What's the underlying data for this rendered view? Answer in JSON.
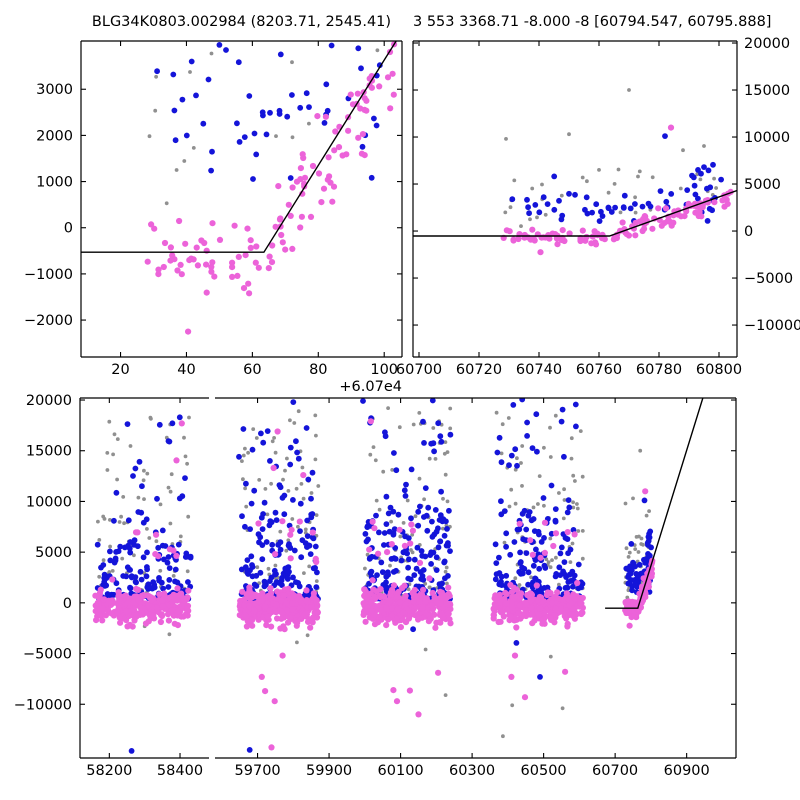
{
  "colors": {
    "pink": "#ec63d9",
    "blue": "#1414d9",
    "gray": "#909090",
    "model_line": "#000000",
    "frame": "#000000",
    "background": "#ffffff"
  },
  "chart_data": {
    "type": "scatter",
    "description": "Three-panel photometric light curve: top-left zoom of event season (flux vs time, x offset +6.07e4), top-right same season full flux range, bottom full multi-season light curve with broken x-axis; piecewise-linear model fit overplotted.",
    "titles": {
      "left": "BLG34K0803.002984 (8203.71, 2545.41)",
      "right": "3 553 3368.71 -8.000 -8 [60794.547, 60795.888]"
    },
    "model_line": {
      "baseline": -530,
      "t_break": 60763.5,
      "slope": 114
    },
    "panels": [
      {
        "id": "top-left",
        "xlim": [
          60708,
          60805.4
        ],
        "ylim": [
          -2800,
          4045
        ],
        "xticks": {
          "values": [
            60720,
            60740,
            60760,
            60780,
            60800
          ],
          "labels": [
            "20",
            "40",
            "60",
            "80",
            "100"
          ]
        },
        "offset_text": "+6.07e4",
        "yticks": {
          "values": [
            -2000,
            -1000,
            0,
            1000,
            2000,
            3000
          ],
          "labels": [
            "−2000",
            "−1000",
            "0",
            "1000",
            "2000",
            "3000"
          ],
          "label_side": "left"
        },
        "datasets": [
          "event"
        ],
        "line_x": [
          60708,
          60805.4
        ]
      },
      {
        "id": "top-right",
        "xlim": [
          60698,
          60806
        ],
        "ylim": [
          -13400,
          20215
        ],
        "xticks": {
          "values": [
            60700,
            60720,
            60740,
            60760,
            60780,
            60800
          ],
          "labels": [
            "60700",
            "60720",
            "60740",
            "60760",
            "60780",
            "60800"
          ]
        },
        "yticks": {
          "values": [
            -10000,
            -5000,
            0,
            5000,
            10000,
            15000,
            20000
          ],
          "labels": [
            "−10000",
            "−5000",
            "0",
            "5000",
            "10000",
            "15000",
            "20000"
          ],
          "label_side": "right"
        },
        "datasets": [
          "event"
        ],
        "line_x": [
          60698,
          60806
        ]
      },
      {
        "id": "bottom-left",
        "xlim": [
          58117,
          58482
        ],
        "ylim": [
          -15300,
          20200
        ],
        "xticks": {
          "values": [
            58200,
            58400
          ],
          "labels": [
            "58200",
            "58400"
          ]
        },
        "yticks": {
          "values": [
            -10000,
            -5000,
            0,
            5000,
            10000,
            15000,
            20000
          ],
          "labels": [
            "−10000",
            "−5000",
            "0",
            "5000",
            "10000",
            "15000",
            "20000"
          ],
          "label_side": "left"
        },
        "datasets": [
          "s1"
        ],
        "line_x": null
      },
      {
        "id": "bottom-right",
        "xlim": [
          59581,
          61038
        ],
        "ylim": [
          -15300,
          20200
        ],
        "xticks": {
          "values": [
            59700,
            59900,
            60100,
            60300,
            60500,
            60700,
            60900
          ],
          "labels": [
            "59700",
            "59900",
            "60100",
            "60300",
            "60500",
            "60700",
            "60900"
          ]
        },
        "yticks": {
          "values": [
            -10000,
            -5000,
            0,
            5000,
            10000,
            15000,
            20000
          ],
          "labels": null,
          "label_side": null
        },
        "datasets": [
          "s2",
          "s3",
          "s4",
          "event"
        ],
        "line_x": [
          60672,
          61038
        ]
      }
    ],
    "datasets": {
      "event": {
        "clusters": [
          {
            "color": "pink",
            "n": 48,
            "x": [
              60728,
              60763
            ],
            "y": {
              "kind": "normal",
              "mu": -680,
              "sigma": 400,
              "clip": [
                -1560,
                250
              ]
            }
          },
          {
            "color": "pink",
            "n": 75,
            "x": [
              60762,
              60804
            ],
            "y": {
              "kind": "event",
              "base": -530,
              "t0": 60762,
              "slope": 95,
              "sigma": 520,
              "clip": [
                -1300,
                11000
              ]
            }
          },
          {
            "color": "blue",
            "n": 55,
            "x": [
              60731,
              60801
            ],
            "y": {
              "kind": "trend",
              "base": 1300,
              "x0": 60730,
              "slope": 38,
              "sigma": 1150,
              "clip": [
                750,
                7100
              ]
            }
          },
          {
            "color": "gray",
            "n": 27,
            "x": [
              60728,
              60800
            ],
            "y": {
              "kind": "uniform",
              "lo": 1200,
              "hi": 6600
            }
          }
        ],
        "points": [
          [
            60740.5,
            -2250,
            "pink"
          ],
          [
            60784,
            11000,
            "pink"
          ],
          [
            60782,
            10100,
            "blue"
          ],
          [
            60736,
            3320,
            "blue"
          ],
          [
            60752,
            3850,
            "blue"
          ],
          [
            60750,
            3960,
            "blue"
          ],
          [
            60793,
            6500,
            "blue"
          ],
          [
            60795,
            6800,
            "blue"
          ],
          [
            60796.5,
            6450,
            "blue"
          ],
          [
            60798,
            7050,
            "blue"
          ],
          [
            60794,
            6100,
            "blue"
          ],
          [
            60791,
            5900,
            "blue"
          ],
          [
            60729,
            9800,
            "gray"
          ],
          [
            60750,
            10300,
            "gray"
          ],
          [
            60770,
            15000,
            "gray"
          ],
          [
            60788,
            8600,
            "gray"
          ],
          [
            60795,
            9050,
            "gray"
          ],
          [
            60760,
            6500,
            "gray"
          ],
          [
            60773,
            5800,
            "gray"
          ],
          [
            60741,
            4950,
            "gray"
          ],
          [
            60734,
            530,
            "gray"
          ],
          [
            60737,
            1250,
            "gray"
          ]
        ]
      },
      "s1": {
        "clusters": [
          {
            "color": "pink",
            "n": 300,
            "x": [
              58160,
              58425
            ],
            "y": {
              "kind": "normal",
              "mu": -350,
              "sigma": 780,
              "clip": [
                -2400,
                3600
              ]
            }
          },
          {
            "color": "pink",
            "n": 8,
            "x": [
              58200,
              58420
            ],
            "y": {
              "kind": "uniform",
              "lo": 3800,
              "hi": 7800
            }
          },
          {
            "color": "blue",
            "n": 150,
            "x": [
              58165,
              58430
            ],
            "y": {
              "kind": "power",
              "lo": 400,
              "hi": 6200,
              "k": 2.0
            }
          },
          {
            "color": "blue",
            "n": 22,
            "x": [
              58180,
              58420
            ],
            "y": {
              "kind": "uniform",
              "lo": 6200,
              "hi": 19600
            }
          },
          {
            "color": "gray",
            "n": 75,
            "x": [
              58165,
              58430
            ],
            "y": {
              "kind": "power",
              "lo": 600,
              "hi": 19700,
              "k": 1.6
            }
          }
        ],
        "points": [
          [
            58263,
            -14600,
            "blue"
          ],
          [
            58405,
            17700,
            "pink"
          ],
          [
            58390,
            14050,
            "pink"
          ],
          [
            58370,
            -3100,
            "gray"
          ],
          [
            58300,
            -2300,
            "gray"
          ],
          [
            58220,
            10850,
            "blue"
          ]
        ]
      },
      "s2": {
        "clusters": [
          {
            "color": "pink",
            "n": 310,
            "x": [
              59650,
              59870
            ],
            "y": {
              "kind": "normal",
              "mu": -400,
              "sigma": 820,
              "clip": [
                -2700,
                3700
              ]
            }
          },
          {
            "color": "pink",
            "n": 10,
            "x": [
              59690,
              59870
            ],
            "y": {
              "kind": "uniform",
              "lo": 3800,
              "hi": 9000
            }
          },
          {
            "color": "blue",
            "n": 170,
            "x": [
              59655,
              59870
            ],
            "y": {
              "kind": "power",
              "lo": 400,
              "hi": 9000,
              "k": 2.1
            }
          },
          {
            "color": "blue",
            "n": 25,
            "x": [
              59660,
              59870
            ],
            "y": {
              "kind": "uniform",
              "lo": 9000,
              "hi": 17500
            }
          },
          {
            "color": "gray",
            "n": 80,
            "x": [
              59655,
              59870
            ],
            "y": {
              "kind": "power",
              "lo": 600,
              "hi": 19000,
              "k": 1.7
            }
          }
        ],
        "points": [
          [
            59678,
            -14500,
            "blue"
          ],
          [
            59739,
            -14250,
            "pink"
          ],
          [
            59712,
            -7300,
            "pink"
          ],
          [
            59721,
            -8700,
            "pink"
          ],
          [
            59748,
            -9700,
            "pink"
          ],
          [
            59770,
            -5200,
            "pink"
          ],
          [
            59756,
            16900,
            "pink"
          ],
          [
            59745,
            13300,
            "pink"
          ],
          [
            59828,
            12600,
            "pink"
          ],
          [
            59686,
            15100,
            "blue"
          ],
          [
            59648,
            14400,
            "blue"
          ],
          [
            59800,
            19800,
            "blue"
          ],
          [
            59815,
            18900,
            "gray"
          ],
          [
            59810,
            -3900,
            "gray"
          ],
          [
            59840,
            -3200,
            "gray"
          ]
        ]
      },
      "s3": {
        "clusters": [
          {
            "color": "pink",
            "n": 320,
            "x": [
              59995,
              60240
            ],
            "y": {
              "kind": "normal",
              "mu": -400,
              "sigma": 800,
              "clip": [
                -2500,
                3700
              ]
            }
          },
          {
            "color": "pink",
            "n": 12,
            "x": [
              60010,
              60240
            ],
            "y": {
              "kind": "uniform",
              "lo": 3800,
              "hi": 8200
            }
          },
          {
            "color": "blue",
            "n": 190,
            "x": [
              60000,
              60240
            ],
            "y": {
              "kind": "power",
              "lo": 400,
              "hi": 9500,
              "k": 2.0
            }
          },
          {
            "color": "blue",
            "n": 22,
            "x": [
              60000,
              60240
            ],
            "y": {
              "kind": "uniform",
              "lo": 9500,
              "hi": 18500
            }
          },
          {
            "color": "gray",
            "n": 85,
            "x": [
              60000,
              60240
            ],
            "y": {
              "kind": "power",
              "lo": 600,
              "hi": 19500,
              "k": 1.7
            }
          }
        ],
        "points": [
          [
            60080,
            -8600,
            "pink"
          ],
          [
            60090,
            -9700,
            "pink"
          ],
          [
            60126,
            -8650,
            "pink"
          ],
          [
            60150,
            -11000,
            "pink"
          ],
          [
            60205,
            -6900,
            "pink"
          ],
          [
            60017,
            17900,
            "pink"
          ],
          [
            59995,
            19900,
            "blue"
          ],
          [
            60190,
            19950,
            "blue"
          ],
          [
            60135,
            -2600,
            "blue"
          ],
          [
            60226,
            -9100,
            "gray"
          ],
          [
            60170,
            -4600,
            "gray"
          ]
        ]
      },
      "s4": {
        "clusters": [
          {
            "color": "pink",
            "n": 300,
            "x": [
              60360,
              60610
            ],
            "y": {
              "kind": "normal",
              "mu": -400,
              "sigma": 800,
              "clip": [
                -2500,
                3700
              ]
            }
          },
          {
            "color": "pink",
            "n": 10,
            "x": [
              60370,
              60600
            ],
            "y": {
              "kind": "uniform",
              "lo": 3800,
              "hi": 8000
            }
          },
          {
            "color": "blue",
            "n": 185,
            "x": [
              60365,
              60610
            ],
            "y": {
              "kind": "power",
              "lo": 400,
              "hi": 9500,
              "k": 2.0
            }
          },
          {
            "color": "blue",
            "n": 22,
            "x": [
              60365,
              60610
            ],
            "y": {
              "kind": "uniform",
              "lo": 9500,
              "hi": 19700
            }
          },
          {
            "color": "gray",
            "n": 80,
            "x": [
              60365,
              60610
            ],
            "y": {
              "kind": "power",
              "lo": 600,
              "hi": 19000,
              "k": 1.7
            }
          }
        ],
        "points": [
          [
            60386,
            -13150,
            "gray"
          ],
          [
            60412,
            -10100,
            "gray"
          ],
          [
            60553,
            -10400,
            "gray"
          ],
          [
            60520,
            -5300,
            "gray"
          ],
          [
            60410,
            -7300,
            "pink"
          ],
          [
            60448,
            -9300,
            "pink"
          ],
          [
            60420,
            -5200,
            "pink"
          ],
          [
            60560,
            -6800,
            "pink"
          ],
          [
            60424,
            -3950,
            "blue"
          ],
          [
            60490,
            -7300,
            "blue"
          ],
          [
            60440,
            20050,
            "blue"
          ]
        ]
      }
    }
  }
}
